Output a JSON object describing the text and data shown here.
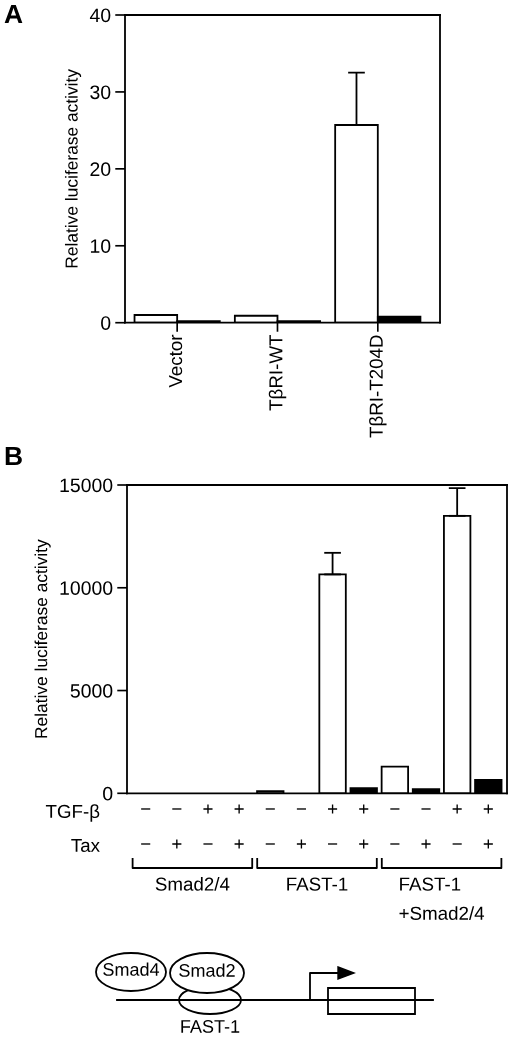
{
  "chart_data": [
    {
      "type": "bar",
      "title": "A",
      "ylabel": "Relative luciferase activity",
      "categories": [
        "Vector",
        "TβRI-WT",
        "TβRI-T204D"
      ],
      "series": [
        {
          "color": "#ffffff",
          "values": [
            1.0,
            0.9,
            25.7
          ],
          "errors": [
            null,
            null,
            [
              25.7,
              32.5
            ]
          ]
        },
        {
          "color": "#000000",
          "values": [
            0.2,
            0.2,
            0.8
          ]
        }
      ],
      "ylim": [
        0,
        40
      ],
      "yticks": [
        0,
        10,
        20,
        30,
        40
      ]
    },
    {
      "type": "bar",
      "title": "B",
      "ylabel": "Relative luciferase activity",
      "categories": [
        "−\n−",
        "−\n+",
        "+\n−",
        "+\n+",
        "−\n−",
        "−\n+",
        "+\n−",
        "+\n+",
        "−\n−",
        "−\n+",
        "+\n−",
        "+\n+"
      ],
      "values": [
        0,
        0,
        0,
        0,
        100,
        0,
        10650,
        250,
        1300,
        200,
        13500,
        650
      ],
      "colors": [
        "#ffffff",
        "#000000",
        "#ffffff",
        "#000000",
        "#ffffff",
        "#000000",
        "#ffffff",
        "#000000",
        "#ffffff",
        "#000000",
        "#ffffff",
        "#000000"
      ],
      "errors": [
        null,
        null,
        null,
        null,
        null,
        null,
        [
          10650,
          11700
        ],
        null,
        null,
        null,
        [
          13500,
          14850
        ],
        null
      ],
      "ylim": [
        0,
        15000
      ],
      "yticks": [
        0,
        5000,
        10000,
        15000
      ],
      "annotations": [
        "TGF-β",
        "Tax",
        "Smad2/4",
        "FAST-1",
        "FAST-1\n+Smad2/4"
      ]
    },
    {
      "type": "other",
      "annotations": [
        "Smad4",
        "Smad2",
        "FAST-1"
      ]
    }
  ]
}
